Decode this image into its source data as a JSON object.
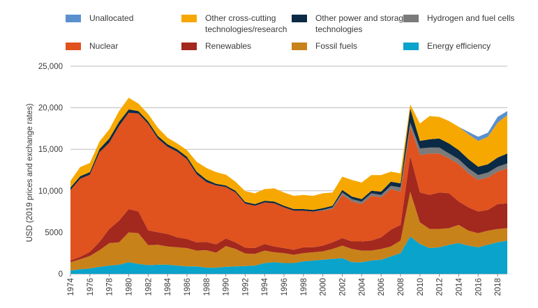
{
  "chart_data": {
    "type": "area",
    "stacked": true,
    "title": "",
    "xlabel": "",
    "ylabel": "USD (2019 prices and exchange rates)",
    "ylim": [
      0,
      25000
    ],
    "y_ticks": [
      "25,000",
      "20,000",
      "15,000",
      "10,000",
      "5000",
      "0"
    ],
    "y_tick_values": [
      25000,
      20000,
      15000,
      10000,
      5000,
      0
    ],
    "x_ticks": [
      "1974",
      "1976",
      "1978",
      "1980",
      "1982",
      "1984",
      "1986",
      "1988",
      "1990",
      "1992",
      "1994",
      "1996",
      "1998",
      "2000",
      "2002",
      "2004",
      "2006",
      "2008",
      "2010",
      "2012",
      "2014",
      "2016",
      "2018"
    ],
    "x": [
      1974,
      1975,
      1976,
      1977,
      1978,
      1979,
      1980,
      1981,
      1982,
      1983,
      1984,
      1985,
      1986,
      1987,
      1988,
      1989,
      1990,
      1991,
      1992,
      1993,
      1994,
      1995,
      1996,
      1997,
      1998,
      1999,
      2000,
      2001,
      2002,
      2003,
      2004,
      2005,
      2006,
      2007,
      2008,
      2009,
      2010,
      2011,
      2012,
      2013,
      2014,
      2015,
      2016,
      2017,
      2018,
      2019
    ],
    "grid": true,
    "legend_position": "top",
    "series": [
      {
        "name": "Energy efficiency",
        "color": "#0aa3cc",
        "values": [
          400,
          550,
          650,
          850,
          1000,
          1100,
          1400,
          1200,
          1050,
          1100,
          1100,
          1000,
          900,
          900,
          750,
          750,
          850,
          900,
          950,
          1000,
          1300,
          1400,
          1300,
          1300,
          1500,
          1600,
          1700,
          1800,
          1900,
          1400,
          1400,
          1600,
          1700,
          2100,
          2500,
          4500,
          3600,
          3100,
          3200,
          3500,
          3700,
          3400,
          3200,
          3500,
          3800,
          4000
        ]
      },
      {
        "name": "Fossil fuels",
        "color": "#c8821a",
        "values": [
          1000,
          1200,
          1500,
          2000,
          2700,
          2700,
          3600,
          3700,
          2400,
          2400,
          2200,
          2200,
          2200,
          1900,
          2100,
          1800,
          2500,
          2100,
          1500,
          1400,
          1500,
          1200,
          1200,
          1000,
          1000,
          1000,
          1000,
          1200,
          1500,
          1600,
          1400,
          1200,
          1300,
          1200,
          1500,
          5400,
          2600,
          2300,
          2200,
          2000,
          2200,
          1800,
          1700,
          1700,
          1600,
          1500
        ]
      },
      {
        "name": "Renewables",
        "color": "#a3281e",
        "values": [
          200,
          300,
          500,
          1000,
          1700,
          2600,
          2800,
          2600,
          1800,
          1500,
          1500,
          1200,
          1100,
          1000,
          1000,
          1000,
          900,
          800,
          700,
          700,
          800,
          700,
          600,
          600,
          700,
          600,
          700,
          800,
          900,
          900,
          1100,
          1200,
          1400,
          2000,
          1900,
          4300,
          3600,
          4100,
          4400,
          4200,
          2800,
          2800,
          2600,
          2500,
          3000,
          3000
        ]
      },
      {
        "name": "Nuclear",
        "color": "#e0521e",
        "values": [
          8500,
          9400,
          9300,
          10800,
          10400,
          11400,
          11600,
          11800,
          12800,
          11300,
          10500,
          10300,
          9600,
          8200,
          7200,
          7100,
          6200,
          6000,
          5300,
          5100,
          5000,
          5200,
          4900,
          4700,
          4400,
          4300,
          4200,
          4000,
          5200,
          4800,
          4500,
          5400,
          4800,
          4900,
          4000,
          3500,
          4500,
          5000,
          4700,
          4200,
          4500,
          4100,
          3800,
          3900,
          3900,
          4200
        ]
      },
      {
        "name": "Hydrogen and fuel cells",
        "color": "#7b7b7b",
        "values": [
          0,
          0,
          0,
          0,
          0,
          0,
          0,
          0,
          0,
          0,
          0,
          0,
          0,
          0,
          0,
          0,
          0,
          0,
          0,
          0,
          0,
          0,
          0,
          0,
          0,
          0,
          100,
          200,
          300,
          300,
          300,
          300,
          300,
          400,
          500,
          500,
          800,
          700,
          700,
          600,
          600,
          600,
          600,
          600,
          600,
          600
        ]
      },
      {
        "name": "Other power and storage technologies",
        "color": "#0b2a45",
        "values": [
          300,
          300,
          300,
          400,
          500,
          500,
          400,
          300,
          300,
          300,
          300,
          300,
          300,
          300,
          300,
          200,
          200,
          200,
          200,
          200,
          200,
          200,
          200,
          200,
          200,
          200,
          200,
          200,
          300,
          300,
          300,
          300,
          400,
          500,
          500,
          1700,
          900,
          1000,
          1100,
          1200,
          1100,
          1100,
          1000,
          1000,
          1100,
          1200
        ]
      },
      {
        "name": "Other cross-cutting technologies/research",
        "color": "#f6a800",
        "values": [
          800,
          1100,
          1100,
          900,
          1100,
          1300,
          1400,
          900,
          900,
          1000,
          800,
          700,
          800,
          1200,
          1400,
          1400,
          1300,
          1100,
          1300,
          1300,
          1400,
          1600,
          1600,
          1600,
          1700,
          1700,
          1800,
          1600,
          1600,
          2000,
          2000,
          1900,
          2000,
          1200,
          1200,
          500,
          2100,
          2800,
          2600,
          2700,
          2800,
          3000,
          3100,
          3300,
          4200,
          4600
        ]
      },
      {
        "name": "Unallocated",
        "color": "#5b90cf",
        "values": [
          0,
          0,
          0,
          0,
          0,
          0,
          0,
          0,
          0,
          0,
          0,
          0,
          0,
          0,
          0,
          0,
          0,
          0,
          0,
          0,
          0,
          0,
          0,
          0,
          0,
          0,
          0,
          0,
          0,
          0,
          0,
          0,
          0,
          0,
          0,
          0,
          0,
          0,
          0,
          0,
          0,
          300,
          500,
          500,
          700,
          500
        ]
      }
    ],
    "legend_rows": [
      [
        "Unallocated",
        "Other cross-cutting technologies/research",
        "Other power and storage technologies",
        "Hydrogen and fuel cells"
      ],
      [
        "Nuclear",
        "Renewables",
        "Fossil fuels",
        "Energy efficiency"
      ]
    ]
  }
}
